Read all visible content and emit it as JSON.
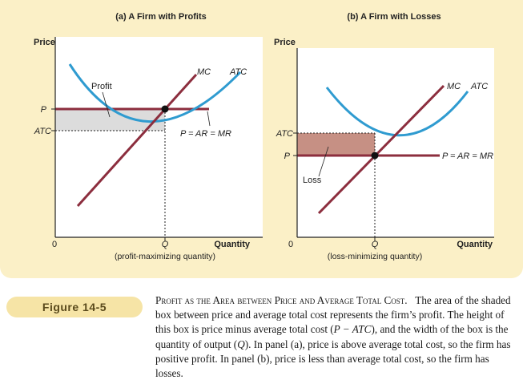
{
  "panel_a": {
    "title": "(a) A Firm with Profits",
    "y_axis_label": "Price",
    "x_axis_label": "Quantity",
    "origin_label": "0",
    "p_tick": "P",
    "atc_tick": "ATC",
    "q_tick": "Q",
    "q_note": "(profit-maximizing quantity)",
    "mc_label": "MC",
    "atc_label": "ATC",
    "price_line_label": "P = AR = MR",
    "area_label": "Profit"
  },
  "panel_b": {
    "title": "(b) A Firm with Losses",
    "y_axis_label": "Price",
    "x_axis_label": "Quantity",
    "origin_label": "0",
    "p_tick": "P",
    "atc_tick": "ATC",
    "q_tick": "Q",
    "q_note": "(loss-minimizing quantity)",
    "mc_label": "MC",
    "atc_label": "ATC",
    "price_line_label": "P = AR = MR",
    "area_label": "Loss"
  },
  "figure_label": "Figure 14-5",
  "caption": {
    "title": "Profit as the Area between Price and Average Total Cost.",
    "t1": "The area of the shaded box between price and average total cost represents the firm’s profit. The height of this box is price minus average total cost (",
    "t2": "P − ATC",
    "t3": "), and the width of the box is the quantity of output (",
    "t4": "Q",
    "t5": "). In panel (a), price is above average total cost, so the firm has positive profit. In panel (b), price is less than average total cost, so the firm has losses."
  },
  "colors": {
    "panel_background": "#fbf0c7",
    "plot_background": "#ffffff",
    "mc_curve": "#8c2e3e",
    "atc_curve": "#2f9bd0",
    "price_line": "#8c2e3e",
    "profit_fill": "#dcdcdc",
    "loss_fill": "#c69084",
    "figure_label_bg": "#f6e4a6"
  }
}
